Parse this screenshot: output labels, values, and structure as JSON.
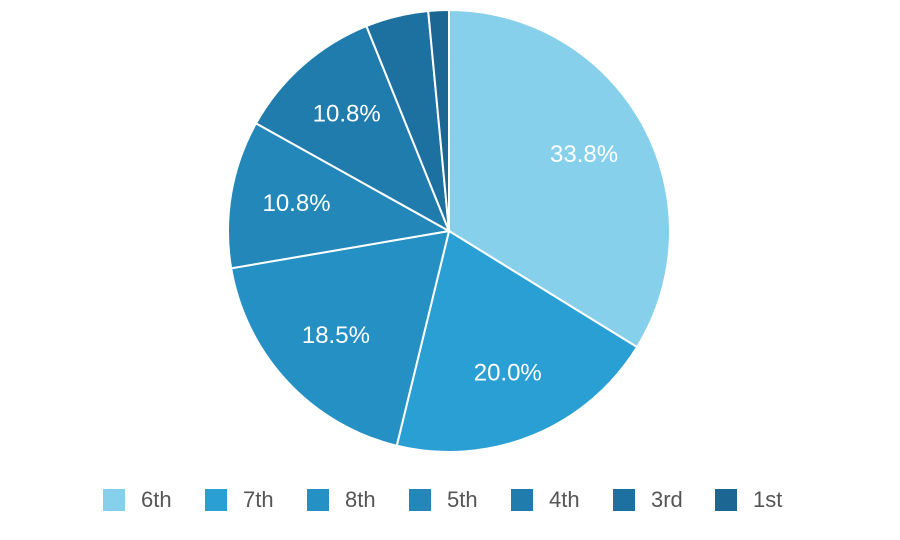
{
  "chart_data": {
    "type": "pie",
    "categories": [
      "6th",
      "7th",
      "8th",
      "5th",
      "4th",
      "3rd",
      "1st"
    ],
    "values": [
      33.8,
      20.0,
      18.5,
      10.8,
      10.8,
      4.6,
      1.5
    ],
    "value_labels": [
      "33.8%",
      "20.0%",
      "18.5%",
      "10.8%",
      "10.8%",
      null,
      null
    ],
    "colors": [
      "#87d0ec",
      "#2a9fd4",
      "#2590c4",
      "#2387ba",
      "#1f7cad",
      "#1d71a0",
      "#1b6692"
    ],
    "legend": "bottom"
  }
}
